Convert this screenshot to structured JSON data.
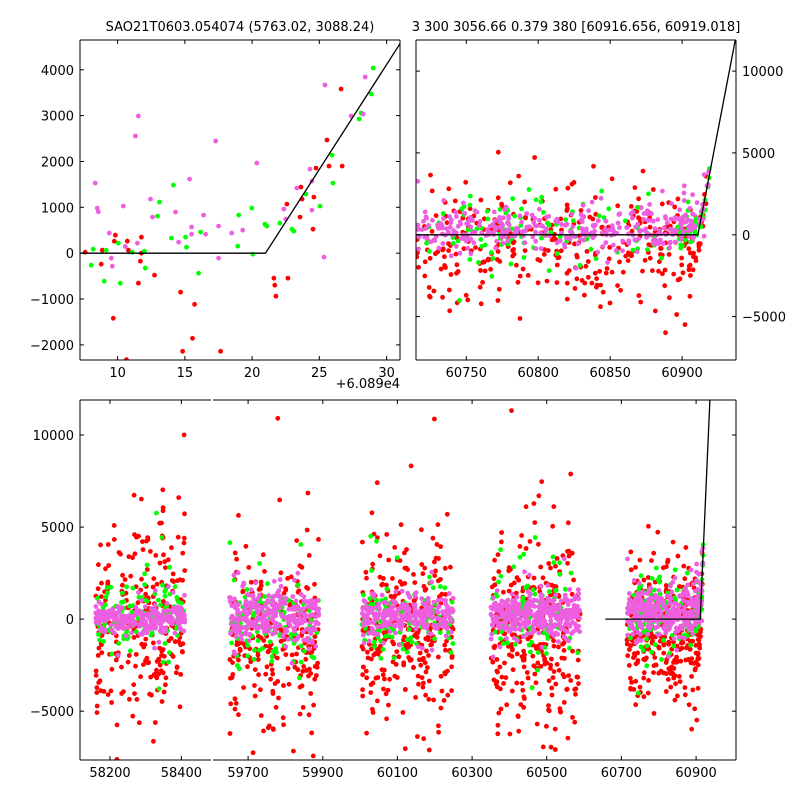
{
  "colors": {
    "red": "#ff0000",
    "green": "#00ff00",
    "magenta": "#ee5ee0",
    "model_line": "#000000"
  },
  "chart_data": [
    {
      "panel": "top-left",
      "type": "scatter",
      "title": "SAO21T0603.054074 (5763.02, 3088.24)",
      "x_offset_label": "+6.089e4",
      "x_offset": 60890,
      "xlim": [
        7.2,
        31.0
      ],
      "ylim": [
        -2330,
        4650
      ],
      "xticks": [
        10,
        15,
        20,
        25,
        30
      ],
      "xtick_labels": [
        "10",
        "15",
        "20",
        "25",
        "30"
      ],
      "yticks": [
        -2000,
        -1000,
        0,
        1000,
        2000,
        3000,
        4000
      ],
      "ytick_labels": [
        "−2000",
        "−1000",
        "0",
        "1000",
        "2000",
        "3000",
        "4000"
      ],
      "y_axis_side": "left",
      "series": [
        {
          "name": "red",
          "points": [
            [
              7.59,
              22
            ],
            [
              8.78,
              -240
            ],
            [
              8.86,
              66
            ],
            [
              9.68,
              -1420
            ],
            [
              9.75,
              262
            ],
            [
              9.83,
              393
            ],
            [
              10.65,
              -2322
            ],
            [
              10.72,
              262
            ],
            [
              10.8,
              66
            ],
            [
              11.54,
              -655
            ],
            [
              11.69,
              -175
            ],
            [
              11.77,
              349
            ],
            [
              11.77,
              0
            ],
            [
              12.74,
              -480
            ],
            [
              14.68,
              -852
            ],
            [
              14.83,
              -2140
            ],
            [
              15.57,
              -1856
            ],
            [
              15.72,
              -1114
            ],
            [
              17.66,
              -2140
            ],
            [
              21.62,
              -546
            ],
            [
              21.69,
              -699
            ],
            [
              21.77,
              -939
            ],
            [
              22.59,
              1070
            ],
            [
              22.66,
              -546
            ],
            [
              23.56,
              786
            ],
            [
              23.63,
              1441
            ],
            [
              23.71,
              1179
            ],
            [
              24.53,
              524
            ],
            [
              24.6,
              1223
            ],
            [
              24.75,
              1856
            ],
            [
              25.57,
              2468
            ],
            [
              25.72,
              1900
            ],
            [
              26.62,
              3582
            ],
            [
              26.7,
              1900
            ]
          ]
        },
        {
          "name": "green",
          "points": [
            [
              7.14,
              480
            ],
            [
              8.03,
              -262
            ],
            [
              8.18,
              87
            ],
            [
              9.0,
              -611
            ],
            [
              9.15,
              66
            ],
            [
              10.05,
              218
            ],
            [
              10.2,
              -655
            ],
            [
              11.09,
              22
            ],
            [
              11.99,
              44
            ],
            [
              12.06,
              -328
            ],
            [
              12.96,
              808
            ],
            [
              13.11,
              1114
            ],
            [
              14.0,
              328
            ],
            [
              14.15,
              1485
            ],
            [
              15.05,
              349
            ],
            [
              15.12,
              131
            ],
            [
              16.02,
              -437
            ],
            [
              16.17,
              459
            ],
            [
              18.93,
              153
            ],
            [
              19.0,
              830
            ],
            [
              19.98,
              983
            ],
            [
              20.05,
              -22
            ],
            [
              20.95,
              633
            ],
            [
              21.09,
              590
            ],
            [
              22.06,
              655
            ],
            [
              22.96,
              524
            ],
            [
              23.11,
              480
            ],
            [
              24.0,
              1289
            ],
            [
              25.05,
              1026
            ],
            [
              25.95,
              2140
            ],
            [
              26.02,
              1529
            ],
            [
              27.96,
              2927
            ],
            [
              28.11,
              3058
            ],
            [
              28.86,
              3473
            ],
            [
              29.01,
              4040
            ]
          ]
        },
        {
          "name": "magenta",
          "points": [
            [
              8.33,
              1529
            ],
            [
              8.48,
              983
            ],
            [
              8.56,
              903
            ],
            [
              9.38,
              437
            ],
            [
              9.53,
              -109
            ],
            [
              9.6,
              -284
            ],
            [
              10.42,
              1026
            ],
            [
              10.57,
              146
            ],
            [
              11.32,
              2555
            ],
            [
              11.54,
              2992
            ],
            [
              11.47,
              218
            ],
            [
              12.44,
              1179
            ],
            [
              12.59,
              786
            ],
            [
              14.3,
              895
            ],
            [
              14.53,
              240
            ],
            [
              15.35,
              1616
            ],
            [
              15.5,
              568
            ],
            [
              15.5,
              415
            ],
            [
              16.39,
              830
            ],
            [
              16.54,
              415
            ],
            [
              17.29,
              2446
            ],
            [
              17.51,
              590
            ],
            [
              17.51,
              -109
            ],
            [
              18.48,
              437
            ],
            [
              19.3,
              502
            ],
            [
              20.35,
              1966
            ],
            [
              22.36,
              961
            ],
            [
              22.51,
              743
            ],
            [
              23.33,
              1420
            ],
            [
              24.3,
              1835
            ],
            [
              24.45,
              1572
            ],
            [
              24.45,
              939
            ],
            [
              25.35,
              -87
            ],
            [
              25.42,
              3669
            ],
            [
              27.36,
              2992
            ],
            [
              28.26,
              3036
            ],
            [
              28.41,
              3844
            ]
          ]
        }
      ]
    },
    {
      "panel": "top-right",
      "type": "scatter",
      "title": "3 300 3056.66 0.379 380 [60916.656, 60919.018]",
      "xlim": [
        60715,
        60937.5
      ],
      "ylim": [
        -7650,
        11900
      ],
      "xticks": [
        60750,
        60800,
        60850,
        60900
      ],
      "xtick_labels": [
        "60750",
        "60800",
        "60850",
        "60900"
      ],
      "yticks": [
        -5000,
        0,
        5000,
        10000
      ],
      "ytick_labels": [
        "−5000",
        "0",
        "5000",
        "10000"
      ],
      "y_axis_side": "right"
    },
    {
      "panel": "bottom",
      "type": "scatter",
      "broken_x_segments": [
        [
          58116,
          58483
        ],
        [
          59606,
          61007
        ]
      ],
      "ylim": [
        -7650,
        11900
      ],
      "xticks": [
        [
          58200,
          58400
        ],
        [
          59700,
          59900,
          60100,
          60300,
          60500,
          60700,
          60900
        ]
      ],
      "xtick_labels": [
        [
          "58200",
          "58400"
        ],
        [
          "59700",
          "59900",
          "60100",
          "60300",
          "60500",
          "60700",
          "60900"
        ]
      ],
      "yticks": [
        -5000,
        0,
        5000,
        10000
      ],
      "ytick_labels": [
        "−5000",
        "0",
        "5000",
        "10000"
      ],
      "y_axis_side": "left"
    }
  ],
  "model_line": {
    "knee_x": 60911,
    "flat_y": 0,
    "slope_per_day": 457,
    "bottom_panel_start_x": 60657
  },
  "seasons": {
    "note_seed": 12345,
    "clusters": [
      {
        "xrange": [
          58160,
          58410
        ],
        "red": {
          "n": 260,
          "mean": -300,
          "sd": 2500
        },
        "green": {
          "n": 120,
          "mean": 300,
          "sd": 900
        },
        "magenta": {
          "n": 250,
          "mean": 0,
          "sd": 400
        }
      },
      {
        "xrange": [
          59650,
          59890
        ],
        "red": {
          "n": 250,
          "mean": -1000,
          "sd": 2300
        },
        "green": {
          "n": 120,
          "mean": -200,
          "sd": 1200
        },
        "magenta": {
          "n": 280,
          "mean": 200,
          "sd": 700
        }
      },
      {
        "xrange": [
          60005,
          60250
        ],
        "red": {
          "n": 300,
          "mean": -500,
          "sd": 2300
        },
        "green": {
          "n": 100,
          "mean": 0,
          "sd": 900
        },
        "magenta": {
          "n": 250,
          "mean": 200,
          "sd": 500
        }
      },
      {
        "xrange": [
          60350,
          60590
        ],
        "red": {
          "n": 300,
          "mean": -800,
          "sd": 2800
        },
        "green": {
          "n": 100,
          "mean": 100,
          "sd": 1200
        },
        "magenta": {
          "n": 350,
          "mean": 200,
          "sd": 500
        }
      },
      {
        "xrange": [
          60715,
          60910
        ],
        "red": {
          "n": 320,
          "mean": -800,
          "sd": 1700
        },
        "green": {
          "n": 120,
          "mean": 300,
          "sd": 1000
        },
        "magenta": {
          "n": 320,
          "mean": 350,
          "sd": 600
        }
      }
    ]
  }
}
